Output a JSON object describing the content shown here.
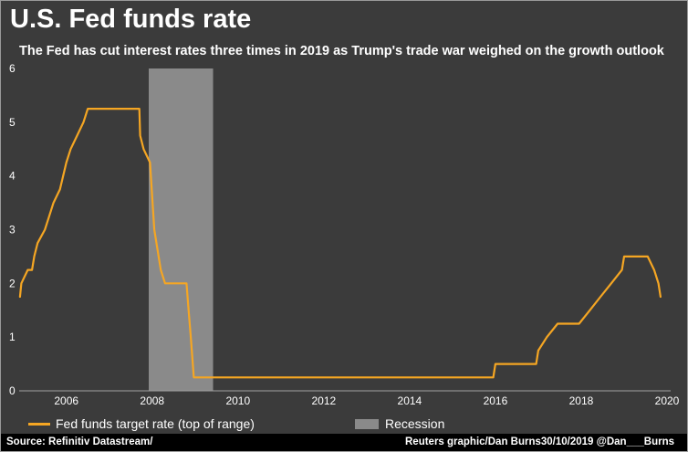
{
  "chart_data": {
    "type": "line",
    "title": "U.S. Fed funds rate",
    "subtitle": "The Fed has cut interest rates three times in 2019 as Trump's trade war weighed on the growth outlook",
    "xlim": [
      2004.9,
      2020.0
    ],
    "ylim": [
      0,
      6
    ],
    "x_ticks": [
      "2006",
      "2008",
      "2010",
      "2012",
      "2014",
      "2016",
      "2018",
      "2020"
    ],
    "y_ticks": [
      "0",
      "1",
      "2",
      "3",
      "4",
      "5",
      "6"
    ],
    "grid": false,
    "legend_placement": "bottom",
    "series": [
      {
        "name": "Fed funds target rate (top of range)",
        "color": "#f5a623",
        "points": [
          [
            2004.92,
            1.75
          ],
          [
            2004.95,
            2.0
          ],
          [
            2005.1,
            2.25
          ],
          [
            2005.2,
            2.25
          ],
          [
            2005.25,
            2.5
          ],
          [
            2005.33,
            2.75
          ],
          [
            2005.5,
            3.0
          ],
          [
            2005.6,
            3.25
          ],
          [
            2005.7,
            3.5
          ],
          [
            2005.85,
            3.75
          ],
          [
            2006.0,
            4.25
          ],
          [
            2006.1,
            4.5
          ],
          [
            2006.25,
            4.75
          ],
          [
            2006.4,
            5.0
          ],
          [
            2006.5,
            5.25
          ],
          [
            2007.7,
            5.25
          ],
          [
            2007.72,
            4.75
          ],
          [
            2007.8,
            4.5
          ],
          [
            2007.95,
            4.25
          ],
          [
            2008.05,
            3.0
          ],
          [
            2008.2,
            2.25
          ],
          [
            2008.3,
            2.0
          ],
          [
            2008.8,
            2.0
          ],
          [
            2008.85,
            1.5
          ],
          [
            2008.9,
            1.0
          ],
          [
            2008.97,
            0.25
          ],
          [
            2015.95,
            0.25
          ],
          [
            2016.0,
            0.5
          ],
          [
            2016.95,
            0.5
          ],
          [
            2017.0,
            0.75
          ],
          [
            2017.2,
            1.0
          ],
          [
            2017.45,
            1.25
          ],
          [
            2017.95,
            1.25
          ],
          [
            2018.2,
            1.5
          ],
          [
            2018.45,
            1.75
          ],
          [
            2018.7,
            2.0
          ],
          [
            2018.95,
            2.25
          ],
          [
            2019.0,
            2.5
          ],
          [
            2019.55,
            2.5
          ],
          [
            2019.7,
            2.25
          ],
          [
            2019.8,
            2.0
          ],
          [
            2019.85,
            1.75
          ]
        ]
      }
    ],
    "shaded_regions": [
      {
        "name": "Recession",
        "color": "#8a8a8a",
        "x_start": 2007.92,
        "x_end": 2009.42
      }
    ]
  },
  "legend": {
    "rate_label": "Fed funds target rate (top of range)",
    "recession_label": "Recession"
  },
  "footer": {
    "source": "Source: Refinitiv Datastream/",
    "credit": "Reuters graphic/Dan Burns30/10/2019 @Dan___Burns"
  },
  "colors": {
    "background": "#3b3b3b",
    "line": "#f5a623",
    "recession": "#8a8a8a",
    "text": "#ffffff"
  }
}
